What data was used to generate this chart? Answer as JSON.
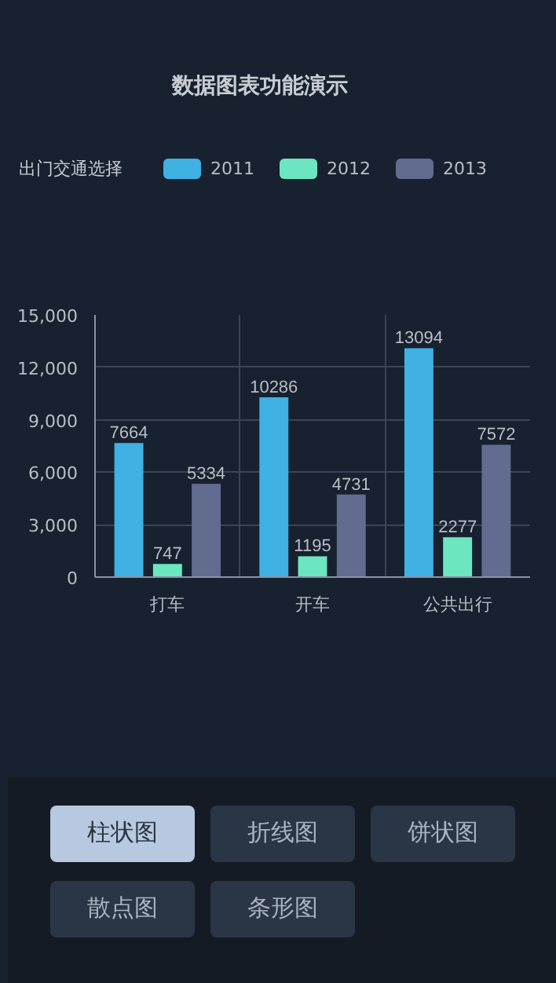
{
  "chart_data": {
    "type": "bar",
    "title": "数据图表功能演示",
    "legend_title": "出门交通选择",
    "categories": [
      "打车",
      "开车",
      "公共出行"
    ],
    "series": [
      {
        "name": "2011",
        "color": "#3fb1e3",
        "values": [
          7664,
          10286,
          13094
        ]
      },
      {
        "name": "2012",
        "color": "#6be6c1",
        "values": [
          747,
          1195,
          2277
        ]
      },
      {
        "name": "2013",
        "color": "#626c91",
        "values": [
          5334,
          4731,
          7572
        ]
      }
    ],
    "ylim": [
      0,
      15000
    ],
    "yticks": [
      0,
      {
        "value": 3000,
        "label": "3,000"
      },
      {
        "value": 6000,
        "label": "6,000"
      },
      {
        "value": 9000,
        "label": "9,000"
      },
      {
        "value": 12000,
        "label": "12,000"
      },
      {
        "value": 15000,
        "label": "15,000"
      }
    ],
    "grid": true,
    "legend": "top",
    "data_labels": true,
    "annotations": [
      "柱状图",
      "折线图",
      "饼状图",
      "散点图",
      "条形图"
    ]
  }
}
